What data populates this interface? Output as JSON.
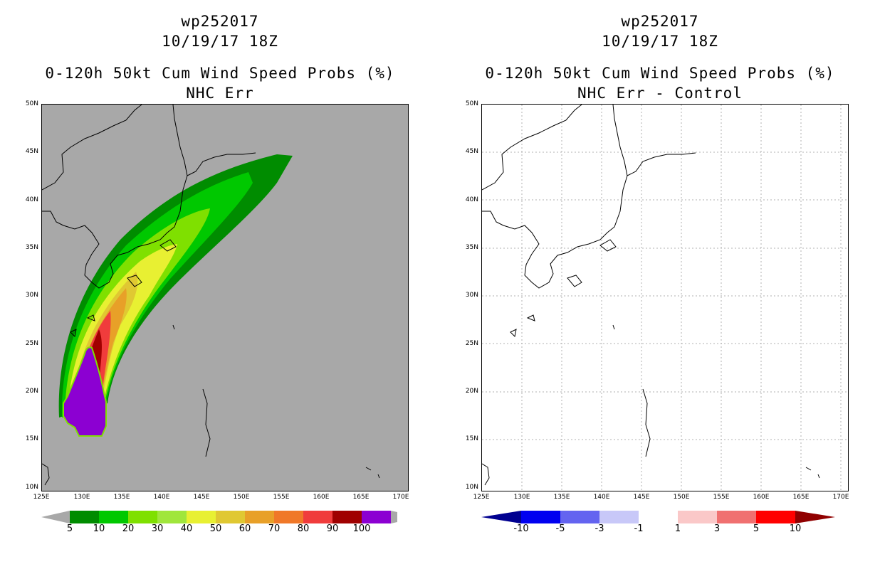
{
  "panels": [
    {
      "id": "left",
      "title_line1": "wp252017",
      "title_line2": "10/19/17 18Z",
      "title_line3": "0-120h 50kt Cum Wind Speed Probs (%)",
      "title_line4": "NHC Err",
      "background_color": "#a8a8a8",
      "colorbar": {
        "labels": [
          "5",
          "10",
          "20",
          "30",
          "40",
          "50",
          "60",
          "70",
          "80",
          "90",
          "100"
        ],
        "colors": [
          "#008c00",
          "#00c800",
          "#7fe000",
          "#a0e63c",
          "#e8f032",
          "#e0c832",
          "#e8a028",
          "#f07828",
          "#f03c3c",
          "#a00000",
          "#8c00d2"
        ]
      }
    },
    {
      "id": "right",
      "title_line1": "wp252017",
      "title_line2": "10/19/17 18Z",
      "title_line3": "0-120h 50kt Cum Wind Speed Probs (%)",
      "title_line4": "NHC Err - Control",
      "background_color": "#ffffff",
      "colorbar": {
        "labels": [
          "-10",
          "-5",
          "-3",
          "-1",
          "1",
          "3",
          "5",
          "10"
        ],
        "colors": [
          "#000090",
          "#0000f0",
          "#6464f0",
          "#c8c8f8",
          "#ffffff",
          "#fac8c8",
          "#f07070",
          "#ff0000",
          "#900000"
        ]
      }
    }
  ],
  "axes": {
    "lat_labels": [
      "50N",
      "45N",
      "40N",
      "35N",
      "30N",
      "25N",
      "20N",
      "15N",
      "10N"
    ],
    "lon_labels": [
      "125E",
      "130E",
      "135E",
      "140E",
      "145E",
      "150E",
      "155E",
      "160E",
      "165E",
      "170E"
    ],
    "lat_range": [
      10,
      50
    ],
    "lon_range": [
      125,
      171
    ]
  }
}
